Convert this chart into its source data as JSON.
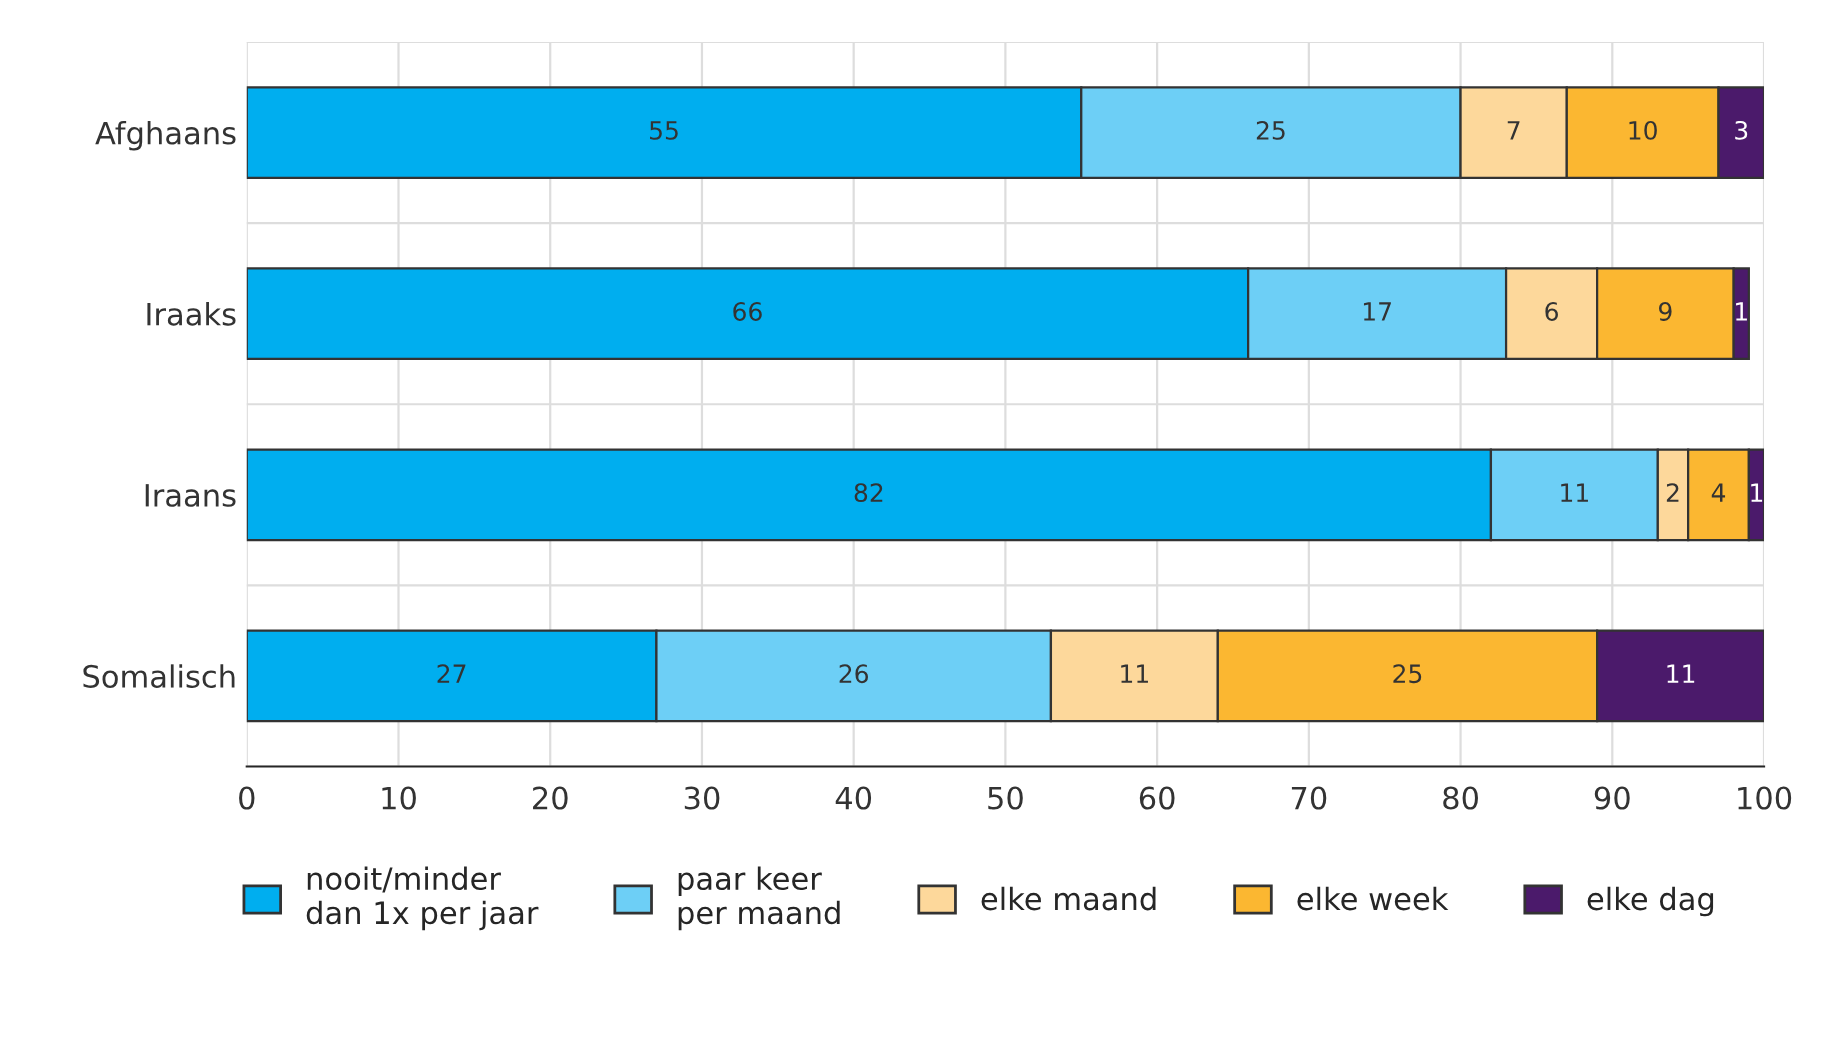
{
  "chart_data": {
    "type": "bar",
    "orientation": "horizontal",
    "stacked": true,
    "categories": [
      "Afghaans",
      "Iraaks",
      "Iraans",
      "Somalisch"
    ],
    "series": [
      {
        "name": "nooit/minder\ndan 1x per jaar",
        "color": "#00aeef",
        "values": [
          55,
          66,
          82,
          27
        ]
      },
      {
        "name": "paar keer\nper maand",
        "color": "#6dcff6",
        "values": [
          25,
          17,
          11,
          26
        ]
      },
      {
        "name": "elke maand",
        "color": "#fdd89b",
        "values": [
          7,
          6,
          2,
          11
        ]
      },
      {
        "name": "elke week",
        "color": "#fbb731",
        "values": [
          10,
          9,
          4,
          25
        ]
      },
      {
        "name": "elke dag",
        "color": "#4b1a6b",
        "values": [
          3,
          1,
          1,
          11
        ]
      }
    ],
    "xlim": [
      0,
      100
    ],
    "xticks": [
      0,
      10,
      20,
      30,
      40,
      50,
      60,
      70,
      80,
      90,
      100
    ],
    "data_labels": true,
    "grid": true,
    "legend": "bottom"
  }
}
